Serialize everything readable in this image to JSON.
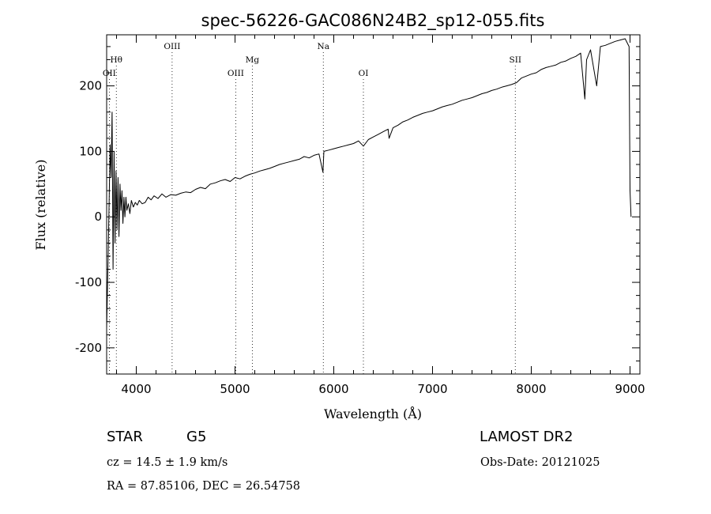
{
  "chart_data": {
    "type": "line",
    "title": "spec-56226-GAC086N24B2_sp12-055.fits",
    "xlabel": "Wavelength (Å)",
    "ylabel": "Flux (relative)",
    "xlim": [
      3700,
      9100
    ],
    "ylim": [
      -240,
      278
    ],
    "x_ticks": [
      4000,
      5000,
      6000,
      7000,
      8000,
      9000
    ],
    "y_ticks": [
      -200,
      -100,
      0,
      100,
      200
    ],
    "grid": false,
    "series": [
      {
        "x": [
          3700,
          3715,
          3725,
          3735,
          3745,
          3755,
          3765,
          3775,
          3785,
          3795,
          3805,
          3815,
          3825,
          3835,
          3845,
          3855,
          3865,
          3875,
          3885,
          3895,
          3905,
          3920,
          3935,
          3950,
          3970,
          3990,
          4010,
          4030,
          4060,
          4090,
          4120,
          4150,
          4180,
          4220,
          4260,
          4300,
          4350,
          4400,
          4450,
          4500,
          4550,
          4600,
          4650,
          4700,
          4750,
          4800,
          4850,
          4900,
          4950,
          5000,
          5050,
          5100,
          5150,
          5200,
          5250,
          5300,
          5350,
          5400,
          5450,
          5500,
          5550,
          5600,
          5650,
          5700,
          5750,
          5800,
          5850,
          5890,
          5900,
          5950,
          6000,
          6050,
          6100,
          6150,
          6200,
          6250,
          6300,
          6350,
          6400,
          6450,
          6500,
          6550,
          6560,
          6600,
          6650,
          6700,
          6750,
          6800,
          6850,
          6900,
          6950,
          7000,
          7050,
          7100,
          7150,
          7200,
          7250,
          7300,
          7350,
          7400,
          7450,
          7500,
          7550,
          7600,
          7650,
          7700,
          7750,
          7800,
          7850,
          7900,
          7950,
          8000,
          8050,
          8100,
          8150,
          8200,
          8250,
          8300,
          8350,
          8400,
          8450,
          8500,
          8542,
          8560,
          8600,
          8662,
          8700,
          8750,
          8800,
          8850,
          8900,
          8950,
          8990,
          9000,
          9010
        ],
        "values": [
          -170,
          -60,
          20,
          110,
          60,
          160,
          -80,
          100,
          -40,
          70,
          -20,
          60,
          -30,
          50,
          10,
          40,
          -10,
          30,
          0,
          30,
          10,
          20,
          5,
          25,
          15,
          22,
          18,
          25,
          20,
          22,
          30,
          26,
          32,
          28,
          35,
          30,
          34,
          33,
          36,
          38,
          37,
          42,
          45,
          43,
          50,
          52,
          55,
          57,
          54,
          60,
          58,
          62,
          65,
          67,
          70,
          72,
          74,
          77,
          80,
          82,
          84,
          86,
          88,
          92,
          90,
          94,
          96,
          68,
          100,
          102,
          104,
          106,
          108,
          110,
          112,
          116,
          108,
          118,
          122,
          126,
          130,
          134,
          120,
          136,
          140,
          145,
          148,
          152,
          155,
          158,
          160,
          162,
          165,
          168,
          170,
          172,
          175,
          178,
          180,
          182,
          185,
          188,
          190,
          193,
          195,
          198,
          200,
          202,
          205,
          212,
          215,
          218,
          220,
          225,
          228,
          230,
          232,
          236,
          238,
          242,
          245,
          250,
          180,
          240,
          255,
          200,
          260,
          262,
          265,
          268,
          270,
          272,
          260,
          40,
          0
        ],
        "color": "#000000"
      }
    ],
    "annotations": [
      {
        "label": "Hθ",
        "x": 3798,
        "row": 2
      },
      {
        "label": "OII",
        "x": 3727,
        "row": 3
      },
      {
        "label": "OIII",
        "x": 4363,
        "row": 1
      },
      {
        "label": "OIII",
        "x": 5007,
        "row": 3
      },
      {
        "label": "Mg",
        "x": 5175,
        "row": 2
      },
      {
        "label": "Na",
        "x": 5894,
        "row": 1
      },
      {
        "label": "OI",
        "x": 6300,
        "row": 3
      },
      {
        "label": "SII",
        "x": 7838,
        "row": 2
      }
    ]
  },
  "info": {
    "object_type": "STAR",
    "subclass": "G5",
    "survey": "LAMOST DR2",
    "cz": "cz = 14.5 ± 1.9 km/s",
    "obs_date": "Obs-Date: 20121025",
    "coords": "RA =  87.85106, DEC =  26.54758"
  }
}
